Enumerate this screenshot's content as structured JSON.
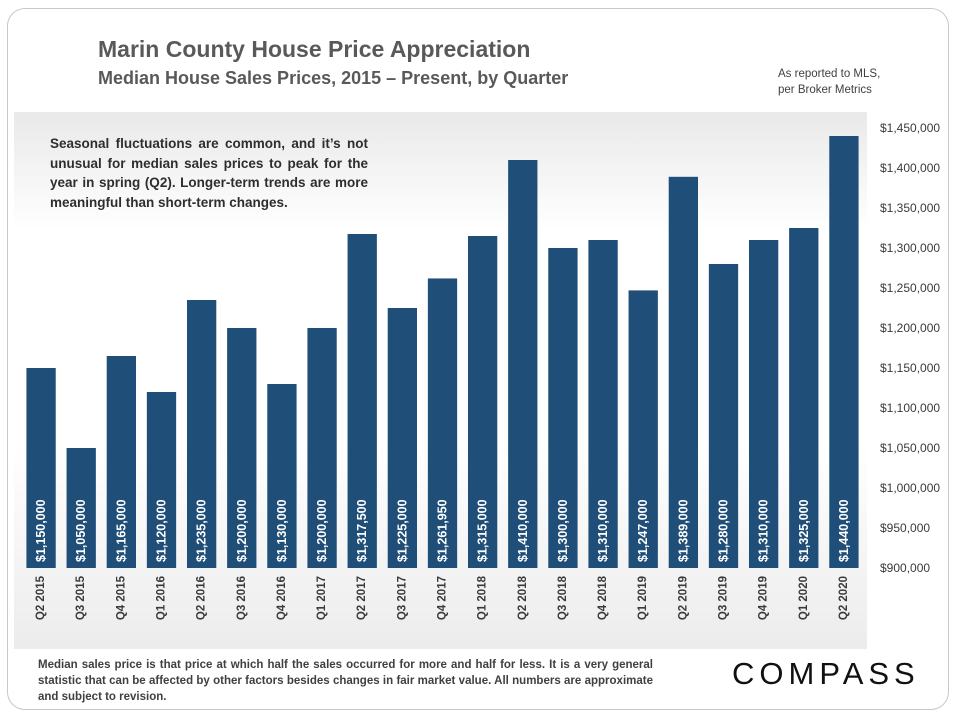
{
  "header": {
    "title": "Marin County House Price Appreciation",
    "subtitle": "Median House Sales Prices, 2015 – Present, by Quarter"
  },
  "source_note": {
    "line1": "As reported to MLS,",
    "line2": "per Broker Metrics"
  },
  "annotation": "Seasonal fluctuations are common, and it’s not unusual for median sales prices to peak for the year in spring (Q2). Longer-term trends are more meaningful than short-term changes.",
  "footnote": "Median sales price is that price at which half the sales occurred for more and half for less. It is a very general statistic that can be affected by other factors besides changes in fair market value. All numbers are approximate and subject to revision.",
  "logo": "COMPASS",
  "colors": {
    "bar": "#1f4e79",
    "bar_label": "#ffffff"
  },
  "chart_data": {
    "type": "bar",
    "title": "Marin County House Price Appreciation",
    "subtitle": "Median House Sales Prices, 2015 – Present, by Quarter",
    "categories": [
      "Q2 2015",
      "Q3 2015",
      "Q4 2015",
      "Q1 2016",
      "Q2 2016",
      "Q3 2016",
      "Q4 2016",
      "Q1 2017",
      "Q2 2017",
      "Q3 2017",
      "Q4 2017",
      "Q1 2018",
      "Q2 2018",
      "Q3 2018",
      "Q4 2018",
      "Q1 2019",
      "Q2 2019",
      "Q3 2019",
      "Q4 2019",
      "Q1 2020",
      "Q2 2020"
    ],
    "values": [
      1150000,
      1050000,
      1165000,
      1120000,
      1235000,
      1200000,
      1130000,
      1200000,
      1317500,
      1225000,
      1261950,
      1315000,
      1410000,
      1300000,
      1310000,
      1247000,
      1389000,
      1280000,
      1310000,
      1325000,
      1440000
    ],
    "data_labels": [
      "$1,150,000",
      "$1,050,000",
      "$1,165,000",
      "$1,120,000",
      "$1,235,000",
      "$1,200,000",
      "$1,130,000",
      "$1,200,000",
      "$1,317,500",
      "$1,225,000",
      "$1,261,950",
      "$1,315,000",
      "$1,410,000",
      "$1,300,000",
      "$1,310,000",
      "$1,247,000",
      "$1,389,000",
      "$1,280,000",
      "$1,310,000",
      "$1,325,000",
      "$1,440,000"
    ],
    "ylim": [
      900000,
      1450000
    ],
    "y_ticks": [
      900000,
      950000,
      1000000,
      1050000,
      1100000,
      1150000,
      1200000,
      1250000,
      1300000,
      1350000,
      1400000,
      1450000
    ],
    "y_tick_labels": [
      "$900,000",
      "$950,000",
      "$1,000,000",
      "$1,050,000",
      "$1,100,000",
      "$1,150,000",
      "$1,200,000",
      "$1,250,000",
      "$1,300,000",
      "$1,350,000",
      "$1,400,000",
      "$1,450,000"
    ],
    "y_axis_side": "right",
    "grid": false,
    "legend": "none",
    "xlabel": "",
    "ylabel": ""
  }
}
